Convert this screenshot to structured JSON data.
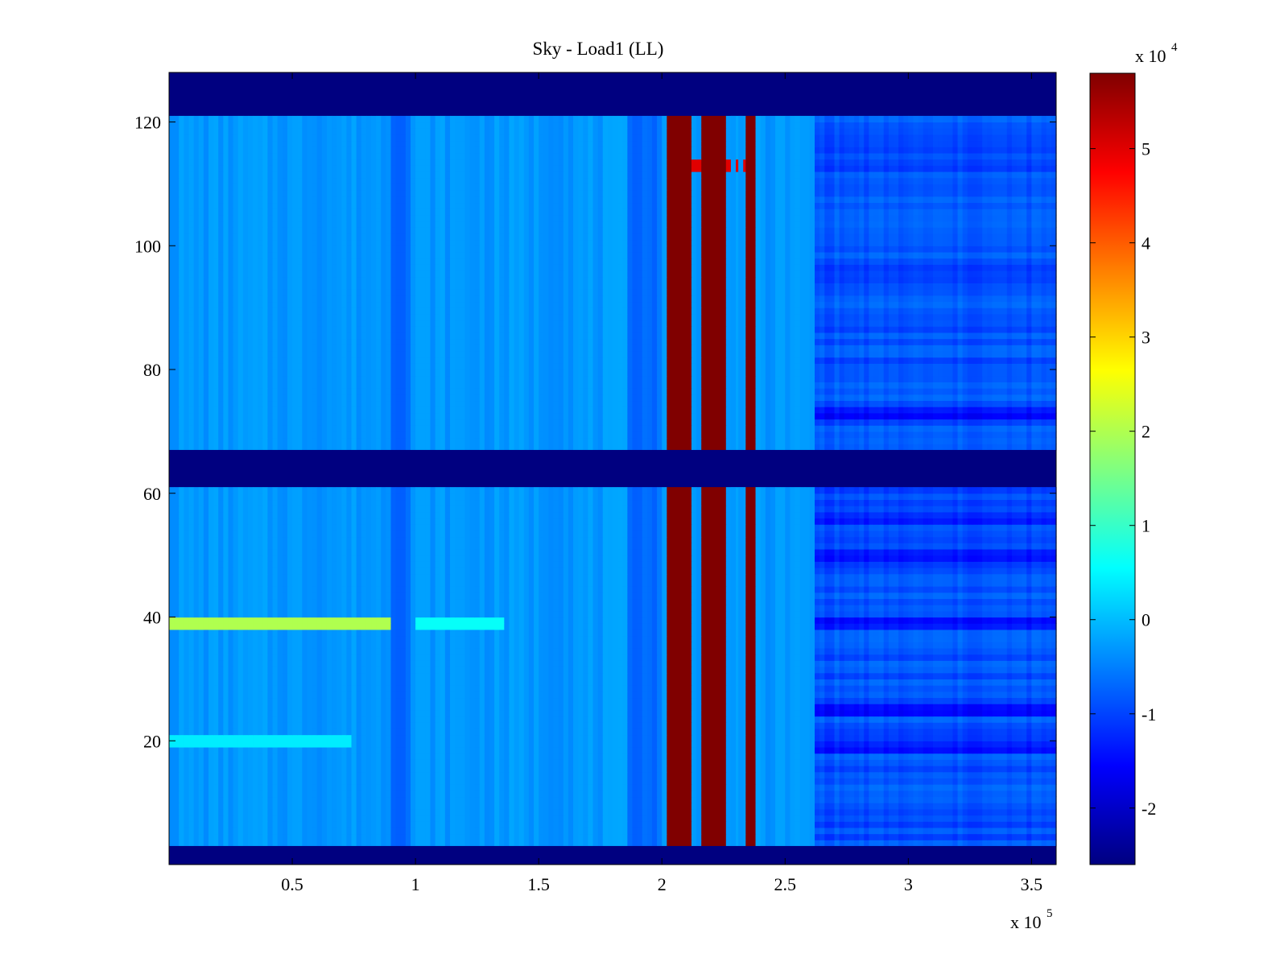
{
  "chart_data": {
    "type": "heatmap",
    "title": "Sky - Load1 (LL)",
    "xlabel": "",
    "ylabel": "",
    "colormap": "jet",
    "x_range": [
      0,
      360000
    ],
    "y_range": [
      0,
      128
    ],
    "x_ticks": [
      50000,
      100000,
      150000,
      200000,
      250000,
      300000,
      350000
    ],
    "x_tick_labels": [
      "0.5",
      "1",
      "1.5",
      "2",
      "2.5",
      "3",
      "3.5"
    ],
    "x_multiplier": {
      "base": "x 10",
      "exponent": "5"
    },
    "y_ticks": [
      20,
      40,
      60,
      80,
      100,
      120
    ],
    "y_tick_labels": [
      "20",
      "40",
      "60",
      "80",
      "100",
      "120"
    ],
    "colorbar": {
      "range": [
        -26000,
        58000
      ],
      "ticks": [
        -20000,
        -10000,
        0,
        10000,
        20000,
        30000,
        40000,
        50000
      ],
      "tick_labels": [
        "-2",
        "-1",
        "0",
        "1",
        "2",
        "3",
        "4",
        "5"
      ],
      "multiplier": {
        "base": "x 10",
        "exponent": "4"
      }
    },
    "masked_rows": [
      [
        0,
        3
      ],
      [
        61,
        67
      ],
      [
        121,
        128
      ]
    ],
    "saturated_columns": [
      [
        202000,
        212000
      ],
      [
        217000,
        227000
      ],
      [
        234000,
        239000
      ]
    ],
    "thin_columns": [
      [
        228000,
        230000
      ],
      [
        231000,
        233000
      ]
    ],
    "row_stripes": [
      {
        "y": 39,
        "x_range": [
          0,
          91000
        ],
        "value": 20000
      },
      {
        "y": 39,
        "x_range": [
          101000,
          137000
        ],
        "value": 6000
      },
      {
        "y": 20,
        "x_range": [
          0,
          75000
        ],
        "value": 4000
      },
      {
        "y": 113,
        "x_range": [
          203000,
          238000
        ],
        "value": 50000
      }
    ],
    "regions": [
      {
        "x_range": [
          0,
          262000
        ],
        "value": -3000
      },
      {
        "x_range": [
          262000,
          360000
        ],
        "value": -9000
      }
    ],
    "dark_columns": [
      [
        91000,
        99000
      ],
      [
        187000,
        200000
      ]
    ],
    "dark_rows_right": [
      19,
      39,
      56,
      25,
      50,
      73
    ]
  }
}
